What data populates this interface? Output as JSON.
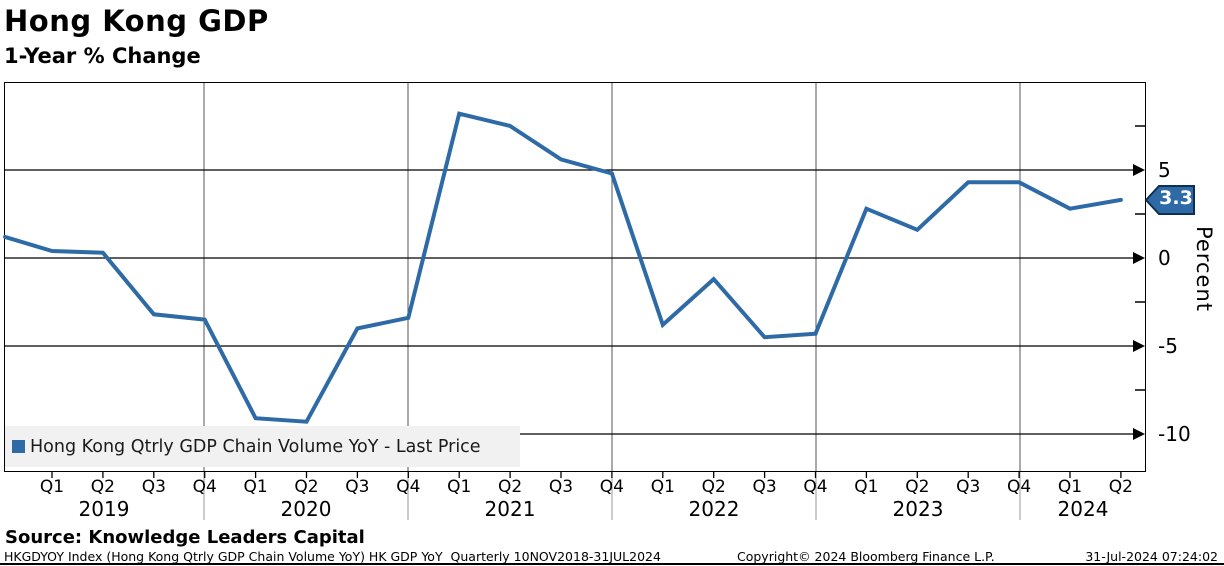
{
  "header": {
    "title": "Hong Kong GDP",
    "subtitle": "1-Year % Change"
  },
  "legend": {
    "label": "Hong Kong Qtrly GDP Chain Volume YoY - Last Price"
  },
  "last_price": {
    "value": "3.3"
  },
  "y_axis": {
    "title": "Percent",
    "major_ticks": [
      5,
      0,
      -5,
      -10
    ],
    "minor_ticks": [
      7.5,
      2.5,
      -2.5,
      -7.5
    ],
    "range": [
      -12.2,
      10.1
    ]
  },
  "x_axis": {
    "quarter_labels": [
      "Q1",
      "Q2",
      "Q3",
      "Q4",
      "Q1",
      "Q2",
      "Q3",
      "Q4",
      "Q1",
      "Q2",
      "Q3",
      "Q4",
      "Q1",
      "Q2",
      "Q3",
      "Q4",
      "Q1",
      "Q2",
      "Q3",
      "Q4",
      "Q1",
      "Q2"
    ],
    "year_labels": [
      "2019",
      "2020",
      "2021",
      "2022",
      "2023",
      "2024"
    ]
  },
  "footer": {
    "source": "Source: Knowledge Leaders Capital",
    "ticker_info": "HKGDYOY Index (Hong Kong Qtrly GDP Chain Volume YoY) HK GDP YoY  Quarterly 10NOV2018-31JUL2024",
    "copyright": "Copyright© 2024 Bloomberg Finance L.P.",
    "timestamp": "31-Jul-2024 07:24:02"
  },
  "colors": {
    "line": "#2e6ba6",
    "flag_fill": "#2e6ba6",
    "flag_border": "#0e2f52",
    "legend_bg": "#f1f1f1",
    "grid": "#000000",
    "year_divider": "#555555"
  },
  "chart_data": {
    "type": "line",
    "title": "Hong Kong GDP",
    "subtitle": "1-Year % Change",
    "series_name": "Hong Kong Qtrly GDP Chain Volume YoY - Last Price",
    "x": [
      "Q4 2018",
      "Q1 2019",
      "Q2 2019",
      "Q3 2019",
      "Q4 2019",
      "Q1 2020",
      "Q2 2020",
      "Q3 2020",
      "Q4 2020",
      "Q1 2021",
      "Q2 2021",
      "Q3 2021",
      "Q4 2021",
      "Q1 2022",
      "Q2 2022",
      "Q3 2022",
      "Q4 2022",
      "Q1 2023",
      "Q2 2023",
      "Q3 2023",
      "Q4 2023",
      "Q1 2024",
      "Q2 2024"
    ],
    "values": [
      1.2,
      0.4,
      0.3,
      -3.2,
      -3.5,
      -9.1,
      -9.3,
      -4.0,
      -3.4,
      8.2,
      7.5,
      5.6,
      4.8,
      -3.8,
      -1.2,
      -4.5,
      -4.3,
      2.8,
      1.6,
      4.3,
      4.3,
      2.8,
      3.3
    ],
    "last_price": 3.3,
    "xlabel": "",
    "ylabel": "Percent",
    "ylim": [
      -12.2,
      10.1
    ],
    "period": "Quarterly 10NOV2018-31JUL2024",
    "legend_position": "bottom-left",
    "grid": true
  }
}
